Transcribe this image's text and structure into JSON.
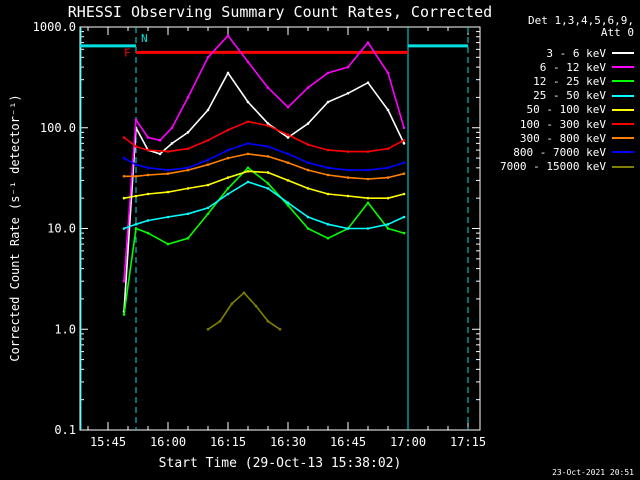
{
  "chart_data": {
    "type": "line",
    "title": "RHESSI Observing Summary Count Rates, Corrected",
    "xlabel": "Start Time (29-Oct-13 15:38:02)",
    "ylabel": "Corrected Count Rate (s⁻¹ detector⁻¹)",
    "y_scale": "log",
    "ylim": [
      0.1,
      1000
    ],
    "xlim": [
      "15:38",
      "17:18"
    ],
    "x_tick_labels": [
      "15:45",
      "16:00",
      "16:15",
      "16:30",
      "16:45",
      "17:00",
      "17:15"
    ],
    "y_tick_labels": [
      "0.1",
      "1.0",
      "10.0",
      "100.0",
      "1000.0"
    ],
    "grid": false,
    "legend_position": "right",
    "detectors": "Det 1,3,4,5,6,9,",
    "attenuator": "Att 0",
    "night_intervals": [
      [
        "15:38",
        "15:52"
      ],
      [
        "17:00",
        "17:15"
      ]
    ],
    "saa_interval_label": "N",
    "flare_flag_label": "F",
    "flare_flag_interval": [
      "15:52",
      "17:00"
    ],
    "series": [
      {
        "name": "3 - 6 keV",
        "color": "#ffffff",
        "x": [
          "15:49",
          "15:52",
          "15:55",
          "15:58",
          "16:01",
          "16:05",
          "16:10",
          "16:15",
          "16:20",
          "16:25",
          "16:30",
          "16:35",
          "16:40",
          "16:45",
          "16:50",
          "16:55",
          "16:59"
        ],
        "values": [
          1.5,
          100,
          60,
          55,
          70,
          90,
          150,
          350,
          180,
          110,
          80,
          110,
          180,
          220,
          280,
          150,
          70
        ]
      },
      {
        "name": "6 - 12 keV",
        "color": "#ff00ff",
        "x": [
          "15:49",
          "15:52",
          "15:55",
          "15:58",
          "16:01",
          "16:05",
          "16:10",
          "16:15",
          "16:20",
          "16:25",
          "16:30",
          "16:35",
          "16:40",
          "16:45",
          "16:50",
          "16:55",
          "16:59"
        ],
        "values": [
          3,
          120,
          80,
          75,
          100,
          200,
          500,
          820,
          450,
          250,
          160,
          250,
          350,
          400,
          700,
          350,
          100
        ]
      },
      {
        "name": "12 - 25 keV",
        "color": "#00ff00",
        "x": [
          "15:49",
          "15:52",
          "15:55",
          "16:00",
          "16:05",
          "16:10",
          "16:15",
          "16:20",
          "16:25",
          "16:30",
          "16:35",
          "16:40",
          "16:45",
          "16:50",
          "16:55",
          "16:59"
        ],
        "values": [
          1.4,
          10,
          9,
          7,
          8,
          14,
          25,
          40,
          28,
          17,
          10,
          8,
          10,
          18,
          10,
          9
        ]
      },
      {
        "name": "25 - 50 keV",
        "color": "#00ffff",
        "x": [
          "15:49",
          "15:52",
          "15:55",
          "16:00",
          "16:05",
          "16:10",
          "16:15",
          "16:20",
          "16:25",
          "16:30",
          "16:35",
          "16:40",
          "16:45",
          "16:50",
          "16:55",
          "16:59"
        ],
        "values": [
          10,
          11,
          12,
          13,
          14,
          16,
          22,
          29,
          25,
          18,
          13,
          11,
          10,
          10,
          11,
          13
        ]
      },
      {
        "name": "50 - 100 keV",
        "color": "#ffff00",
        "x": [
          "15:49",
          "15:52",
          "15:55",
          "16:00",
          "16:05",
          "16:10",
          "16:15",
          "16:20",
          "16:25",
          "16:30",
          "16:35",
          "16:40",
          "16:45",
          "16:50",
          "16:55",
          "16:59"
        ],
        "values": [
          20,
          21,
          22,
          23,
          25,
          27,
          32,
          37,
          36,
          30,
          25,
          22,
          21,
          20,
          20,
          22
        ]
      },
      {
        "name": "100 - 300 keV",
        "color": "#ff0000",
        "x": [
          "15:49",
          "15:52",
          "15:55",
          "16:00",
          "16:05",
          "16:10",
          "16:15",
          "16:20",
          "16:25",
          "16:30",
          "16:35",
          "16:40",
          "16:45",
          "16:50",
          "16:55",
          "16:59"
        ],
        "values": [
          80,
          65,
          60,
          58,
          62,
          75,
          95,
          115,
          105,
          85,
          68,
          60,
          58,
          58,
          62,
          75
        ]
      },
      {
        "name": "300 - 800 keV",
        "color": "#ff8000",
        "x": [
          "15:49",
          "15:52",
          "15:55",
          "16:00",
          "16:05",
          "16:10",
          "16:15",
          "16:20",
          "16:25",
          "16:30",
          "16:35",
          "16:40",
          "16:45",
          "16:50",
          "16:55",
          "16:59"
        ],
        "values": [
          33,
          33,
          34,
          35,
          38,
          43,
          50,
          55,
          52,
          45,
          38,
          34,
          32,
          31,
          32,
          35
        ]
      },
      {
        "name": "800 - 7000 keV",
        "color": "#0000ff",
        "x": [
          "15:49",
          "15:52",
          "15:55",
          "16:00",
          "16:05",
          "16:10",
          "16:15",
          "16:20",
          "16:25",
          "16:30",
          "16:35",
          "16:40",
          "16:45",
          "16:50",
          "16:55",
          "16:59"
        ],
        "values": [
          50,
          43,
          40,
          38,
          40,
          48,
          60,
          70,
          65,
          55,
          45,
          40,
          38,
          38,
          40,
          45
        ]
      },
      {
        "name": "7000 - 15000 keV",
        "color": "#808000",
        "x": [
          "16:10",
          "16:13",
          "16:16",
          "16:19",
          "16:22",
          "16:25",
          "16:28"
        ],
        "values": [
          1.0,
          1.2,
          1.8,
          2.3,
          1.7,
          1.2,
          1.0
        ]
      }
    ]
  },
  "timestamp": "23-Oct-2021 20:51"
}
